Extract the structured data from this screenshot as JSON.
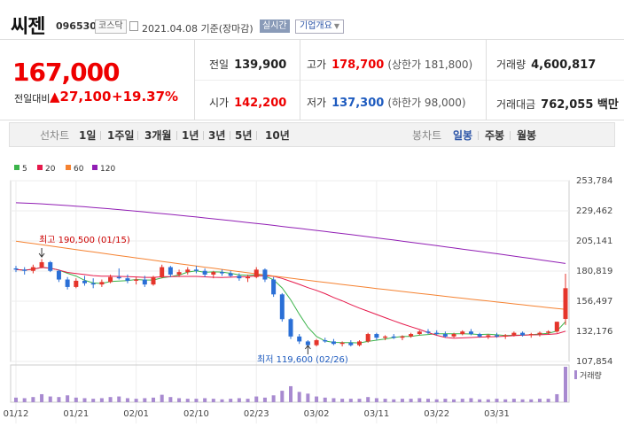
{
  "header": {
    "name": "씨젠",
    "code": "096530",
    "market": "코스닥",
    "date": "2021.04.08 기준(장마감)",
    "realtime": "실시간",
    "info_label": "기업개요"
  },
  "price": {
    "current": "167,000",
    "change_label": "전일대비",
    "change_value": "27,100",
    "change_pct": "+19.37%"
  },
  "stats": {
    "prev_label": "전일",
    "prev_value": "139,900",
    "high_label": "고가",
    "high_value": "178,700",
    "upper_limit": "(상한가 181,800)",
    "volume_label": "거래량",
    "volume_value": "4,600,817",
    "open_label": "시가",
    "open_value": "142,200",
    "low_label": "저가",
    "low_value": "137,300",
    "lower_limit": "(하한가 98,000)",
    "amount_label": "거래대금",
    "amount_value": "762,055 백만"
  },
  "tabs": {
    "line_label": "선차트",
    "periods": [
      "1일",
      "1주일",
      "3개월",
      "1년",
      "3년",
      "5년",
      "10년"
    ],
    "candle_label": "봉차트",
    "candle_types": [
      "일봉",
      "주봉",
      "월봉"
    ],
    "active_candle": "일봉"
  },
  "chart_data": {
    "type": "candlestick",
    "ma_legend": [
      {
        "name": "5",
        "color": "#3cb44b"
      },
      {
        "name": "20",
        "color": "#e6194b"
      },
      {
        "name": "60",
        "color": "#f58231"
      },
      {
        "name": "120",
        "color": "#911eb4"
      }
    ],
    "y_ticks": [
      253784,
      229462,
      205141,
      180819,
      156497,
      132176,
      107854
    ],
    "ylim": [
      107854,
      253784
    ],
    "x_labels": [
      "01/12",
      "01/21",
      "02/01",
      "02/10",
      "02/23",
      "03/02",
      "03/11",
      "03/22",
      "03/31"
    ],
    "volume_label": "거래량",
    "high_annotation": "최고 190,500 (01/15)",
    "low_annotation": "최저 119,600 (02/26)",
    "candles": [
      [
        183000,
        185000,
        180000,
        182000
      ],
      [
        182000,
        184000,
        178000,
        181000
      ],
      [
        181000,
        186000,
        179000,
        184000
      ],
      [
        184000,
        190500,
        183000,
        188000
      ],
      [
        188000,
        189000,
        180000,
        181000
      ],
      [
        181000,
        182000,
        172000,
        174000
      ],
      [
        174000,
        176000,
        166000,
        168000
      ],
      [
        168000,
        175000,
        167000,
        173000
      ],
      [
        173000,
        177000,
        169000,
        171000
      ],
      [
        171000,
        175000,
        167000,
        170000
      ],
      [
        170000,
        174000,
        168000,
        172000
      ],
      [
        172000,
        178000,
        171000,
        176000
      ],
      [
        176000,
        183000,
        174000,
        175000
      ],
      [
        175000,
        178000,
        171000,
        173000
      ],
      [
        173000,
        176000,
        170000,
        174000
      ],
      [
        174000,
        177000,
        168000,
        170000
      ],
      [
        170000,
        177000,
        169000,
        176000
      ],
      [
        176000,
        186000,
        175000,
        184000
      ],
      [
        184000,
        185000,
        176000,
        178000
      ],
      [
        178000,
        182000,
        176000,
        180000
      ],
      [
        180000,
        184000,
        178000,
        182000
      ],
      [
        182000,
        185000,
        179000,
        181000
      ],
      [
        181000,
        183000,
        176000,
        178000
      ],
      [
        178000,
        181000,
        175000,
        180000
      ],
      [
        180000,
        182000,
        177000,
        179000
      ],
      [
        179000,
        181000,
        176000,
        177000
      ],
      [
        177000,
        179000,
        173000,
        175000
      ],
      [
        175000,
        178000,
        172000,
        176000
      ],
      [
        176000,
        184000,
        175000,
        182000
      ],
      [
        182000,
        183000,
        172000,
        174000
      ],
      [
        174000,
        176000,
        160000,
        162000
      ],
      [
        162000,
        163000,
        140000,
        142000
      ],
      [
        142000,
        143000,
        126000,
        128000
      ],
      [
        128000,
        130000,
        122000,
        124000
      ],
      [
        124000,
        125000,
        119600,
        121000
      ],
      [
        121000,
        126000,
        120000,
        125000
      ],
      [
        125000,
        127000,
        123000,
        124000
      ],
      [
        124000,
        126000,
        121000,
        122000
      ],
      [
        122000,
        124000,
        120000,
        123000
      ],
      [
        123000,
        125000,
        120000,
        121000
      ],
      [
        121000,
        125000,
        120000,
        124000
      ],
      [
        124000,
        131000,
        123000,
        130000
      ],
      [
        130000,
        131000,
        125000,
        127000
      ],
      [
        127000,
        129000,
        125000,
        128000
      ],
      [
        128000,
        130000,
        126000,
        127000
      ],
      [
        127000,
        129000,
        125000,
        128000
      ],
      [
        128000,
        131000,
        127000,
        130000
      ],
      [
        130000,
        133000,
        129000,
        132000
      ],
      [
        132000,
        134000,
        130000,
        131000
      ],
      [
        131000,
        133000,
        129000,
        130000
      ],
      [
        130000,
        132000,
        127000,
        128000
      ],
      [
        128000,
        131000,
        127000,
        130000
      ],
      [
        130000,
        133000,
        129000,
        132000
      ],
      [
        132000,
        134000,
        129000,
        130000
      ],
      [
        130000,
        131000,
        127000,
        128000
      ],
      [
        128000,
        130000,
        126000,
        129000
      ],
      [
        129000,
        131000,
        127000,
        128000
      ],
      [
        128000,
        130000,
        126000,
        129000
      ],
      [
        129000,
        132000,
        128000,
        131000
      ],
      [
        131000,
        132000,
        128000,
        129000
      ],
      [
        129000,
        131000,
        127000,
        130000
      ],
      [
        130000,
        132000,
        128000,
        131000
      ],
      [
        131000,
        133000,
        130000,
        132000
      ],
      [
        132000,
        140000,
        131000,
        139900
      ],
      [
        142200,
        178700,
        137300,
        167000
      ]
    ],
    "volumes": [
      8,
      7,
      9,
      14,
      10,
      9,
      12,
      8,
      7,
      6,
      7,
      9,
      10,
      7,
      6,
      7,
      8,
      13,
      9,
      7,
      6,
      6,
      7,
      6,
      5,
      6,
      7,
      6,
      10,
      8,
      12,
      20,
      28,
      18,
      15,
      10,
      8,
      7,
      6,
      6,
      6,
      9,
      7,
      6,
      5,
      6,
      6,
      7,
      6,
      5,
      6,
      5,
      6,
      7,
      5,
      5,
      6,
      5,
      6,
      5,
      5,
      6,
      6,
      14,
      62
    ]
  }
}
